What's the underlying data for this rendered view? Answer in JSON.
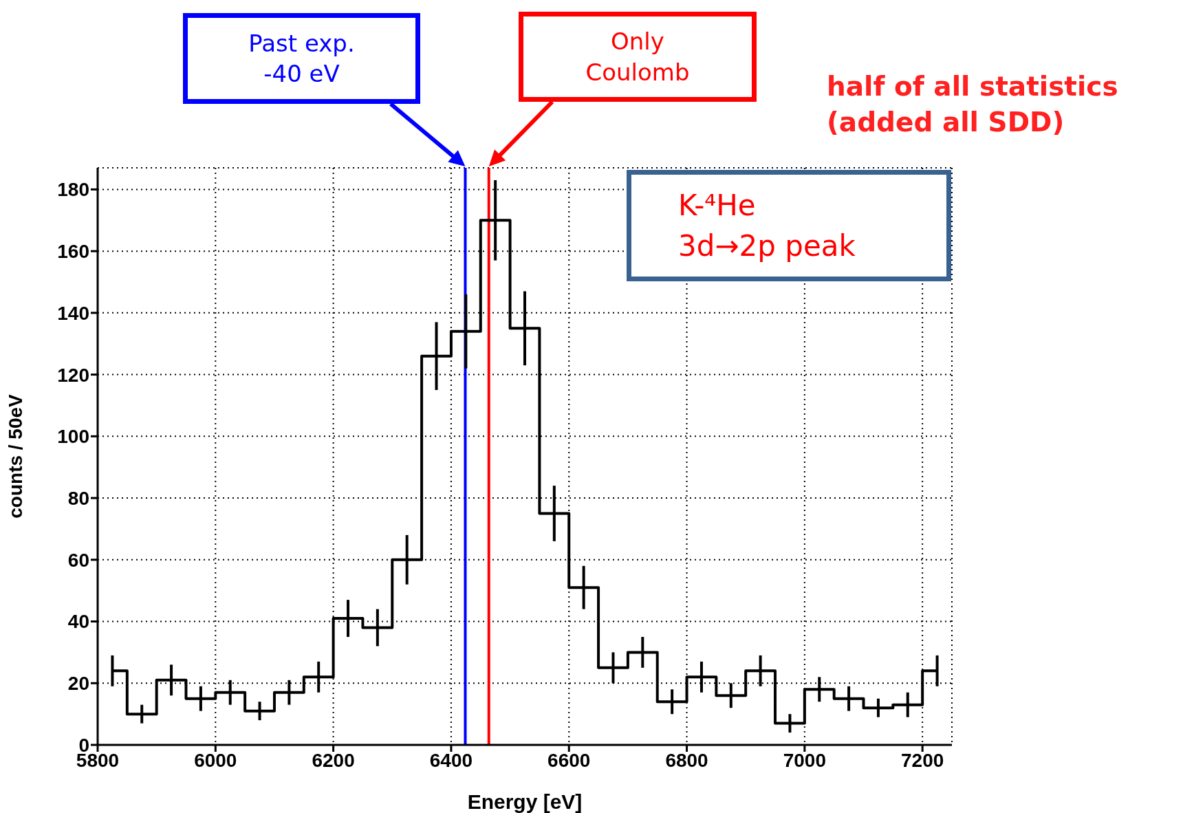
{
  "chart_data": {
    "type": "step",
    "xlabel": "Energy [eV]",
    "ylabel": "counts / 50eV",
    "x": [
      5825,
      5875,
      5925,
      5975,
      6025,
      6075,
      6125,
      6175,
      6225,
      6275,
      6325,
      6375,
      6425,
      6475,
      6525,
      6575,
      6625,
      6675,
      6725,
      6775,
      6825,
      6875,
      6925,
      6975,
      7025,
      7075,
      7125,
      7175,
      7225
    ],
    "values": [
      24,
      10,
      21,
      15,
      17,
      11,
      17,
      22,
      41,
      38,
      60,
      126,
      134,
      170,
      135,
      75,
      51,
      25,
      30,
      14,
      22,
      16,
      24,
      7,
      18,
      15,
      12,
      13,
      24
    ],
    "errors": [
      5,
      3,
      5,
      4,
      4,
      3,
      4,
      5,
      6,
      6,
      8,
      11,
      12,
      13,
      12,
      9,
      7,
      5,
      5,
      4,
      5,
      4,
      5,
      3,
      4,
      4,
      3,
      4,
      5
    ],
    "color": "#000000",
    "marker": "none",
    "xlim": [
      5800,
      7250
    ],
    "xticks": [
      5800,
      6000,
      6200,
      6400,
      6600,
      6800,
      7000,
      7200
    ],
    "ylim": [
      0,
      187
    ],
    "yticks": [
      0,
      20,
      40,
      60,
      80,
      100,
      120,
      140,
      160,
      180
    ],
    "grid": true,
    "ref_lines": [
      {
        "axis": "x",
        "value": 6424,
        "label": "Past exp.\n-40 eV",
        "color": "#0000ff"
      },
      {
        "axis": "x",
        "value": 6464,
        "label": "Only\nCoulomb",
        "color": "#ff0000"
      }
    ],
    "annotations": [
      "half of all statistics\n(added all SDD)",
      "K-⁴He\n3d→2p peak"
    ]
  }
}
